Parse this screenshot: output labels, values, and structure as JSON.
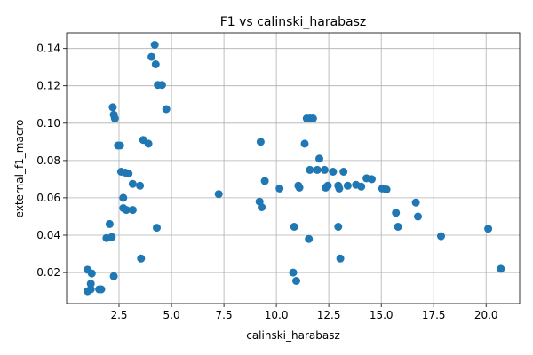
{
  "chart_data": {
    "type": "scatter",
    "title": "F1 vs calinski_harabasz",
    "xlabel": "calinski_harabasz",
    "ylabel": "external_f1_macro",
    "xlim": [
      0.0,
      21.6
    ],
    "ylim": [
      0.0034,
      0.1484
    ],
    "xticks": [
      2.5,
      5.0,
      7.5,
      10.0,
      12.5,
      15.0,
      17.5,
      20.0
    ],
    "xtick_labels": [
      "2.5",
      "5.0",
      "7.5",
      "10.0",
      "12.5",
      "15.0",
      "17.5",
      "20.0"
    ],
    "yticks": [
      0.02,
      0.04,
      0.06,
      0.08,
      0.1,
      0.12,
      0.14
    ],
    "ytick_labels": [
      "0.02",
      "0.04",
      "0.06",
      "0.08",
      "0.10",
      "0.12",
      "0.14"
    ],
    "grid": true,
    "color": "#1f77b4",
    "points": [
      {
        "x": 1.0,
        "y": 0.0215
      },
      {
        "x": 1.2,
        "y": 0.0195
      },
      {
        "x": 1.15,
        "y": 0.014
      },
      {
        "x": 1.0,
        "y": 0.01
      },
      {
        "x": 1.15,
        "y": 0.011
      },
      {
        "x": 1.55,
        "y": 0.011
      },
      {
        "x": 1.65,
        "y": 0.011
      },
      {
        "x": 1.9,
        "y": 0.0385
      },
      {
        "x": 2.05,
        "y": 0.046
      },
      {
        "x": 2.15,
        "y": 0.039
      },
      {
        "x": 2.25,
        "y": 0.018
      },
      {
        "x": 2.2,
        "y": 0.1085
      },
      {
        "x": 2.25,
        "y": 0.1045
      },
      {
        "x": 2.3,
        "y": 0.1025
      },
      {
        "x": 2.45,
        "y": 0.088
      },
      {
        "x": 2.55,
        "y": 0.088
      },
      {
        "x": 2.6,
        "y": 0.074
      },
      {
        "x": 2.8,
        "y": 0.0735
      },
      {
        "x": 2.95,
        "y": 0.073
      },
      {
        "x": 2.7,
        "y": 0.06
      },
      {
        "x": 2.7,
        "y": 0.0545
      },
      {
        "x": 2.85,
        "y": 0.0535
      },
      {
        "x": 3.15,
        "y": 0.0535
      },
      {
        "x": 3.15,
        "y": 0.0675
      },
      {
        "x": 3.5,
        "y": 0.0665
      },
      {
        "x": 3.55,
        "y": 0.0275
      },
      {
        "x": 3.65,
        "y": 0.091
      },
      {
        "x": 3.9,
        "y": 0.089
      },
      {
        "x": 4.05,
        "y": 0.1355
      },
      {
        "x": 4.2,
        "y": 0.142
      },
      {
        "x": 4.25,
        "y": 0.1315
      },
      {
        "x": 4.35,
        "y": 0.1205
      },
      {
        "x": 4.55,
        "y": 0.1205
      },
      {
        "x": 4.75,
        "y": 0.1075
      },
      {
        "x": 4.3,
        "y": 0.044
      },
      {
        "x": 7.25,
        "y": 0.062
      },
      {
        "x": 9.2,
        "y": 0.058
      },
      {
        "x": 9.3,
        "y": 0.055
      },
      {
        "x": 9.25,
        "y": 0.09
      },
      {
        "x": 9.45,
        "y": 0.069
      },
      {
        "x": 10.15,
        "y": 0.065
      },
      {
        "x": 10.85,
        "y": 0.0445
      },
      {
        "x": 10.8,
        "y": 0.02
      },
      {
        "x": 10.95,
        "y": 0.0155
      },
      {
        "x": 11.05,
        "y": 0.0665
      },
      {
        "x": 11.1,
        "y": 0.0655
      },
      {
        "x": 11.35,
        "y": 0.089
      },
      {
        "x": 11.45,
        "y": 0.1025
      },
      {
        "x": 11.6,
        "y": 0.1025
      },
      {
        "x": 11.75,
        "y": 0.1025
      },
      {
        "x": 11.55,
        "y": 0.038
      },
      {
        "x": 11.6,
        "y": 0.075
      },
      {
        "x": 11.95,
        "y": 0.075
      },
      {
        "x": 12.05,
        "y": 0.081
      },
      {
        "x": 12.3,
        "y": 0.075
      },
      {
        "x": 12.35,
        "y": 0.0655
      },
      {
        "x": 12.45,
        "y": 0.0665
      },
      {
        "x": 12.7,
        "y": 0.074
      },
      {
        "x": 12.95,
        "y": 0.0665
      },
      {
        "x": 13.0,
        "y": 0.065
      },
      {
        "x": 12.95,
        "y": 0.0445
      },
      {
        "x": 13.05,
        "y": 0.0275
      },
      {
        "x": 13.2,
        "y": 0.074
      },
      {
        "x": 13.4,
        "y": 0.0665
      },
      {
        "x": 13.8,
        "y": 0.067
      },
      {
        "x": 14.05,
        "y": 0.066
      },
      {
        "x": 14.3,
        "y": 0.0705
      },
      {
        "x": 14.55,
        "y": 0.07
      },
      {
        "x": 15.05,
        "y": 0.065
      },
      {
        "x": 15.25,
        "y": 0.0645
      },
      {
        "x": 15.7,
        "y": 0.052
      },
      {
        "x": 15.8,
        "y": 0.0445
      },
      {
        "x": 16.65,
        "y": 0.0575
      },
      {
        "x": 16.75,
        "y": 0.05
      },
      {
        "x": 17.85,
        "y": 0.0395
      },
      {
        "x": 20.1,
        "y": 0.0435
      },
      {
        "x": 20.7,
        "y": 0.022
      }
    ]
  }
}
